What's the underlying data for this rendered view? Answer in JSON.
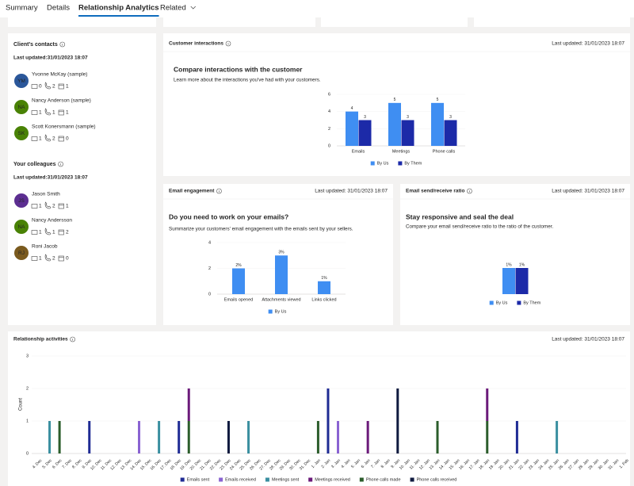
{
  "tabs": [
    "Summary",
    "Details",
    "Relationship Analytics",
    "Related"
  ],
  "panels": [
    {
      "title": "Client's contacts",
      "updated": "Last updated:31/01/2023 18:07",
      "people": [
        {
          "initials": "YM",
          "name": "Yvonne McKay (sample)",
          "color": "#2b579a",
          "counts": [
            0,
            2,
            1
          ]
        },
        {
          "initials": "NA",
          "name": "Nancy Anderson (sample)",
          "color": "#498205",
          "counts": [
            1,
            1,
            1
          ]
        },
        {
          "initials": "SK",
          "name": "Scott Konersmann (sample)",
          "color": "#498205",
          "counts": [
            1,
            2,
            0
          ]
        }
      ]
    },
    {
      "title": "Your colleagues",
      "updated": "Last updated:31/01/2023 18:07",
      "people": [
        {
          "initials": "JS",
          "name": "Jason Smith",
          "color": "#5c2e91",
          "counts": [
            1,
            2,
            1
          ]
        },
        {
          "initials": "NA",
          "name": "Nancy Andersson",
          "color": "#498205",
          "counts": [
            1,
            1,
            2
          ]
        },
        {
          "initials": "RJ",
          "name": "Roni Jacob",
          "color": "#7a5a1e",
          "counts": [
            1,
            2,
            0
          ]
        }
      ]
    }
  ],
  "chart_data": [
    {
      "type": "bar",
      "title": "Customer interactions",
      "last_updated": "Last updated: 31/01/2023 18:07",
      "heading": "Compare interactions with the customer",
      "subtitle": "Learn more about the interactions you've had with your customers.",
      "categories": [
        "Emails",
        "Meetings",
        "Phone calls"
      ],
      "series": [
        {
          "name": "By Us",
          "color": "#3f8ef2",
          "values": [
            4,
            5,
            5
          ]
        },
        {
          "name": "By Them",
          "color": "#1c2aa8",
          "values": [
            3,
            3,
            3
          ]
        }
      ],
      "ylim": [
        0,
        6
      ],
      "yticks": [
        0,
        2,
        4,
        6
      ]
    },
    {
      "type": "bar",
      "title": "Email engagement",
      "last_updated": "Last updated: 31/01/2023 18:07",
      "heading": "Do you need to work on your emails?",
      "subtitle": "Summarize your customers' email engagement with the emails sent by your sellers.",
      "categories": [
        "Emails opened",
        "Attachments viewed",
        "Links clicked"
      ],
      "series": [
        {
          "name": "By Us",
          "color": "#3f8ef2",
          "values": [
            2,
            3,
            1
          ],
          "value_labels": [
            "2%",
            "3%",
            "1%"
          ]
        }
      ],
      "ylim": [
        0,
        4
      ],
      "yticks": [
        0,
        2,
        4
      ]
    },
    {
      "type": "bar",
      "title": "Email send/receive ratio",
      "last_updated": "Last updated: 31/01/2023 18:07",
      "heading": "Stay responsive and seal the deal",
      "subtitle": "Compare your email send/receive ratio to the ratio of the customer.",
      "categories": [
        null
      ],
      "series": [
        {
          "name": "By Us",
          "color": "#3f8ef2",
          "values": [
            1
          ],
          "value_labels": [
            "1%"
          ]
        },
        {
          "name": "By Them",
          "color": "#1c2aa8",
          "values": [
            1
          ],
          "value_labels": [
            "1%"
          ]
        }
      ]
    },
    {
      "type": "stacked_bar",
      "title": "Relationship activities",
      "last_updated": "Last updated: 31/01/2023 18:07",
      "y_label": "Count",
      "categories": [
        "4. Dec",
        "5. Dec",
        "6. Dec",
        "7. Dec",
        "8. Dec",
        "9. Dec",
        "10. Dec",
        "11. Dec",
        "12. Dec",
        "13. Dec",
        "14. Dec",
        "15. Dec",
        "16. Dec",
        "17. Dec",
        "18. Dec",
        "19. Dec",
        "20. Dec",
        "21. Dec",
        "22. Dec",
        "23. Dec",
        "24. Dec",
        "25. Dec",
        "26. Dec",
        "27. Dec",
        "28. Dec",
        "29. Dec",
        "30. Dec",
        "31. Dec",
        "1. Jan",
        "2. Jan",
        "3. Jan",
        "4. Jan",
        "5. Jan",
        "6. Jan",
        "7. Jan",
        "8. Jan",
        "9. Jan",
        "10. Jan",
        "11. Jan",
        "12. Jan",
        "13. Jan",
        "14. Jan",
        "15. Jan",
        "16. Jan",
        "17. Jan",
        "18. Jan",
        "19. Jan",
        "20. Jan",
        "21. Jan",
        "22. Jan",
        "23. Jan",
        "24. Jan",
        "25. Jan",
        "26. Jan",
        "27. Jan",
        "28. Jan",
        "29. Jan",
        "30. Jan",
        "31. Jan",
        "1. Feb"
      ],
      "series": [
        {
          "name": "Emails sent",
          "color": "#1f2b94",
          "values": [
            0,
            0,
            0,
            0,
            0,
            1,
            0,
            0,
            0,
            0,
            0,
            0,
            0,
            0,
            1,
            0,
            0,
            0,
            0,
            0,
            0,
            0,
            0,
            0,
            0,
            0,
            0,
            0,
            0,
            2,
            0,
            0,
            0,
            0,
            0,
            0,
            0,
            0,
            0,
            0,
            0,
            0,
            0,
            0,
            0,
            0,
            0,
            0,
            1,
            0,
            0,
            0,
            0,
            0,
            0,
            0,
            0,
            0,
            0,
            0
          ]
        },
        {
          "name": "Emails received",
          "color": "#8a63d2",
          "values": [
            0,
            0,
            0,
            0,
            0,
            0,
            0,
            0,
            0,
            0,
            1,
            0,
            0,
            0,
            0,
            0,
            0,
            0,
            0,
            0,
            0,
            0,
            0,
            0,
            0,
            0,
            0,
            0,
            0,
            0,
            1,
            0,
            0,
            0,
            0,
            0,
            0,
            0,
            0,
            0,
            0,
            0,
            0,
            0,
            0,
            0,
            0,
            0,
            0,
            0,
            0,
            0,
            0,
            0,
            0,
            0,
            0,
            0,
            0,
            0
          ]
        },
        {
          "name": "Meetings sent",
          "color": "#3a8fa0",
          "values": [
            0,
            1,
            0,
            0,
            0,
            0,
            0,
            0,
            0,
            0,
            0,
            0,
            1,
            0,
            0,
            0,
            0,
            0,
            0,
            0,
            0,
            1,
            0,
            0,
            0,
            0,
            0,
            0,
            0,
            0,
            0,
            0,
            0,
            0,
            0,
            0,
            0,
            0,
            0,
            0,
            0,
            0,
            0,
            0,
            0,
            0,
            0,
            0,
            0,
            0,
            0,
            0,
            1,
            0,
            0,
            0,
            0,
            0,
            0,
            0
          ]
        },
        {
          "name": "Meetings received",
          "color": "#6b1a7a",
          "values": [
            0,
            0,
            0,
            0,
            0,
            0,
            0,
            0,
            0,
            0,
            0,
            0,
            0,
            0,
            0,
            1,
            0,
            0,
            0,
            0,
            0,
            0,
            0,
            0,
            0,
            0,
            0,
            0,
            0,
            0,
            0,
            0,
            0,
            1,
            0,
            0,
            0,
            0,
            0,
            0,
            0,
            0,
            0,
            0,
            0,
            1,
            0,
            0,
            0,
            0,
            0,
            0,
            0,
            0,
            0,
            0,
            0,
            0,
            0,
            0
          ]
        },
        {
          "name": "Phone calls made",
          "color": "#2b5d2b",
          "values": [
            0,
            0,
            1,
            0,
            0,
            0,
            0,
            0,
            0,
            0,
            0,
            0,
            0,
            0,
            0,
            1,
            0,
            0,
            0,
            0,
            0,
            0,
            0,
            0,
            0,
            0,
            0,
            0,
            1,
            0,
            0,
            0,
            0,
            0,
            0,
            0,
            0,
            0,
            0,
            0,
            1,
            0,
            0,
            0,
            0,
            1,
            0,
            0,
            0,
            0,
            0,
            0,
            0,
            0,
            0,
            0,
            0,
            0,
            0,
            0
          ]
        },
        {
          "name": "Phone calls received",
          "color": "#0f1a3f",
          "values": [
            0,
            0,
            0,
            0,
            0,
            0,
            0,
            0,
            0,
            0,
            0,
            0,
            0,
            0,
            0,
            0,
            0,
            0,
            0,
            1,
            0,
            0,
            0,
            0,
            0,
            0,
            0,
            0,
            0,
            0,
            0,
            0,
            0,
            0,
            0,
            0,
            2,
            0,
            0,
            0,
            0,
            0,
            0,
            0,
            0,
            0,
            0,
            0,
            0,
            0,
            0,
            0,
            0,
            0,
            0,
            0,
            0,
            0,
            0,
            0
          ]
        }
      ],
      "ylim": [
        0,
        3
      ],
      "yticks": [
        0,
        1,
        2,
        3
      ]
    }
  ]
}
